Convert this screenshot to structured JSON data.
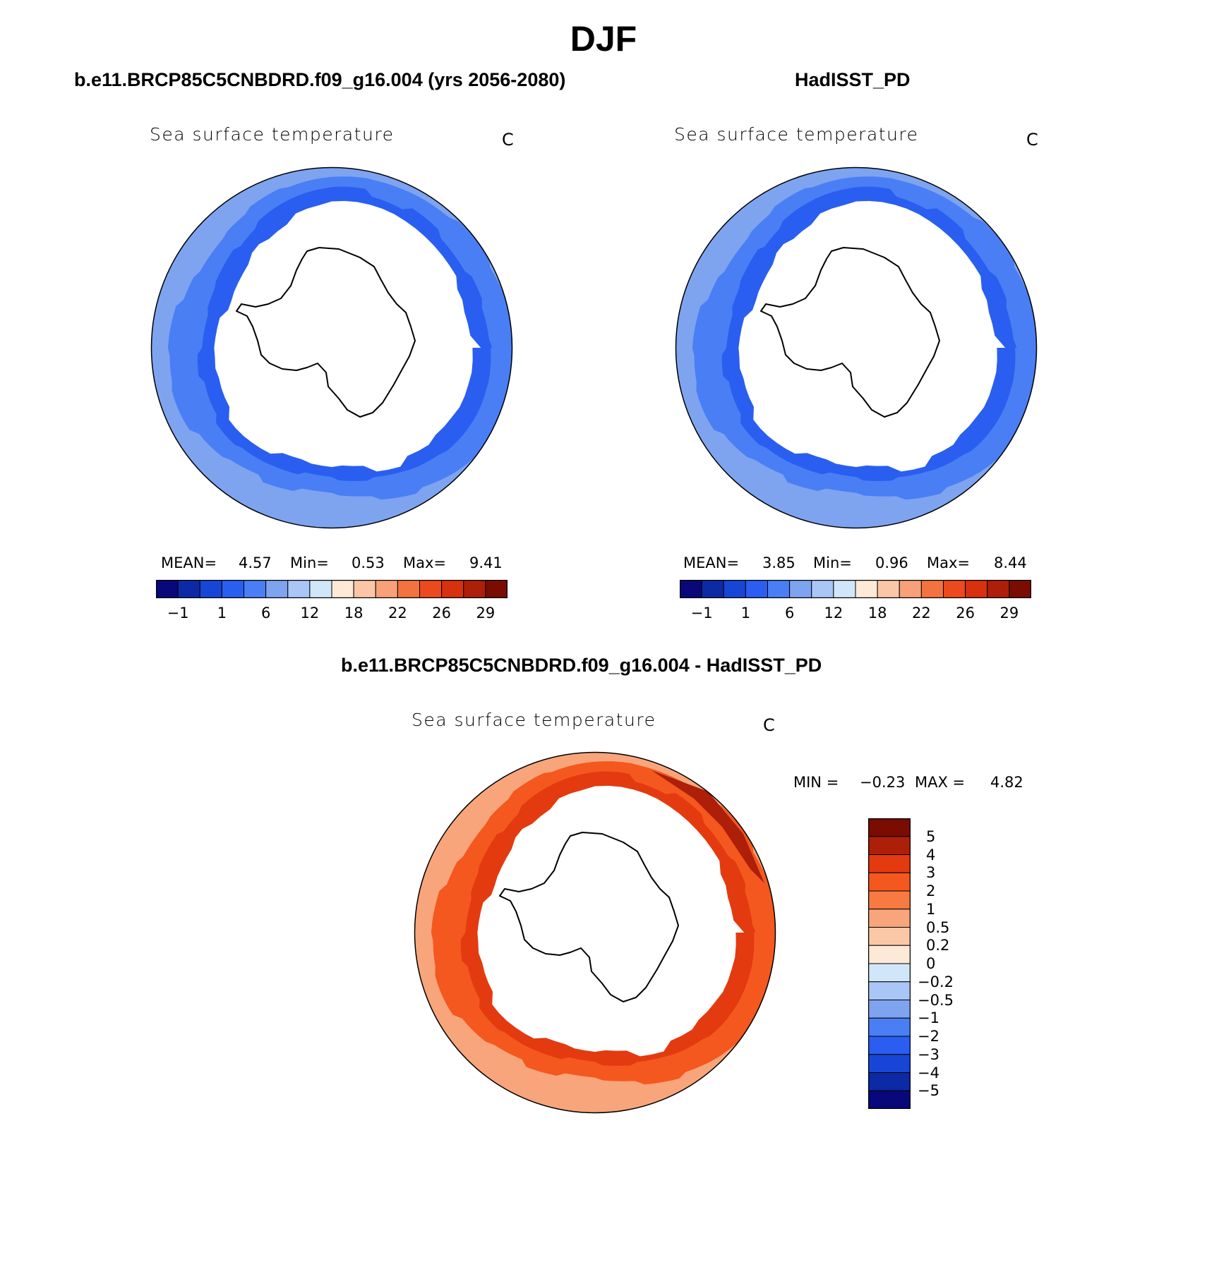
{
  "season": "DJF",
  "panels": [
    {
      "heading": "b.e11.BRCP85C5CNBDRD.f09_g16.004 (yrs 2056-2080)",
      "title": "Sea surface temperature",
      "units": "C",
      "stats": {
        "mean_label": "MEAN=",
        "mean": "4.57",
        "min_label": "Min=",
        "min": "0.53",
        "max_label": "Max=",
        "max": "9.41"
      }
    },
    {
      "heading": "HadISST_PD",
      "title": "Sea surface temperature",
      "units": "C",
      "stats": {
        "mean_label": "MEAN=",
        "mean": "3.85",
        "min_label": "Min=",
        "min": "0.96",
        "max_label": "Max=",
        "max": "8.44"
      }
    }
  ],
  "diff_panel": {
    "heading": "b.e11.BRCP85C5CNBDRD.f09_g16.004 - HadISST_PD",
    "title": "Sea surface temperature",
    "units": "C",
    "stats": {
      "min_label": "MIN =",
      "min": "−0.23",
      "max_label": "MAX =",
      "max": "4.82"
    }
  },
  "colorbar_abs": {
    "colors": [
      "#08087a",
      "#0c2aa6",
      "#1746d6",
      "#2a5ef0",
      "#4a7ef4",
      "#7ea4f0",
      "#a9c6f6",
      "#d2e6fa",
      "#fde9d7",
      "#fbc6a6",
      "#f7a07a",
      "#f2733f",
      "#ec4a1e",
      "#d8310d",
      "#ad1f08",
      "#7a0c02"
    ],
    "labels": [
      "−1",
      "1",
      "6",
      "12",
      "18",
      "22",
      "26",
      "29"
    ]
  },
  "colorbar_diff": {
    "colors": [
      "#7a0c02",
      "#ad1f08",
      "#e33a10",
      "#f4581f",
      "#f67a42",
      "#f8a57c",
      "#fbc8a6",
      "#fde9d7",
      "#d2e6fa",
      "#a9c6f6",
      "#7ea4f0",
      "#4a7ef4",
      "#2a5ef0",
      "#1746d6",
      "#0c2aa6",
      "#08087a"
    ],
    "labels": [
      "5",
      "4",
      "3",
      "2",
      "1",
      "0.5",
      "0.2",
      "0",
      "−0.2",
      "−0.5",
      "−1",
      "−2",
      "−3",
      "−4",
      "−5"
    ]
  },
  "map_colors": {
    "model_outer": "#7ea4f0",
    "model_mid": "#4a7ef4",
    "model_inner": "#2a5ef0",
    "obs_outer": "#7ea4f0",
    "obs_mid": "#4a7ef4",
    "obs_inner": "#2a5ef0",
    "diff_outer": "#f8a57c",
    "diff_mid": "#f4581f",
    "diff_inner": "#e33a10",
    "diff_dark": "#ad1f08",
    "ice": "#ffffff",
    "coast": "#000000"
  }
}
